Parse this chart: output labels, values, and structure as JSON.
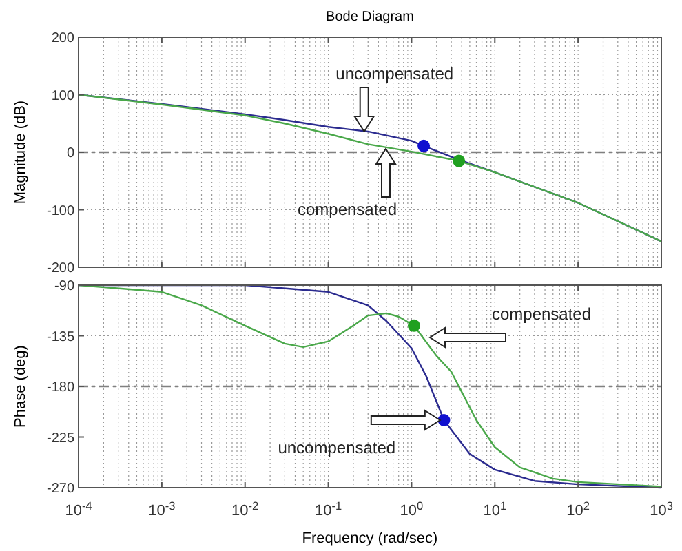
{
  "chart_data": [
    {
      "type": "line",
      "title": "Bode Diagram",
      "ylabel": "Magnitude (dB)",
      "log": "x",
      "grid": true,
      "tick_labels": "y",
      "xlim": [
        0.0001,
        1000
      ],
      "xticks": [
        0.0001,
        0.001,
        0.01,
        0.1,
        1,
        10,
        100,
        1000
      ],
      "ylim": [
        -200,
        200
      ],
      "yticks": [
        -200,
        -100,
        0,
        100,
        200
      ],
      "ref_lines": [
        {
          "axis": "y",
          "value": 0,
          "line_style": "dashdot",
          "color": "#808080"
        }
      ],
      "annotations": [
        {
          "text": "uncompensated",
          "x": 0.27,
          "y": 36
        },
        "compensated"
      ],
      "series": [
        {
          "color": "#2b2b8f",
          "x": [
            0.0001,
            0.001,
            0.01,
            0.03,
            0.1,
            0.3,
            1,
            1.4,
            3.7,
            10,
            100,
            1000
          ],
          "values": [
            100,
            84,
            66,
            56,
            44,
            36,
            20,
            11,
            -13,
            -35,
            -88,
            -155
          ]
        },
        {
          "color": "#4aa84a",
          "x": [
            0.0001,
            0.001,
            0.01,
            0.03,
            0.1,
            0.3,
            1,
            3.7,
            10,
            100,
            1000
          ],
          "values": [
            100,
            83,
            64,
            50,
            32,
            14,
            1,
            -15,
            -35,
            -88,
            -155
          ]
        },
        {
          "type": "scatter",
          "marker": "circle",
          "color": "#1010d0",
          "x": [
            1.4
          ],
          "values": [
            11
          ]
        },
        {
          "type": "scatter",
          "marker": "circle",
          "color": "#20a020",
          "x": [
            3.7
          ],
          "values": [
            -15
          ]
        }
      ]
    },
    {
      "type": "line",
      "xlabel": "Frequency  (rad/sec)",
      "ylabel": "Phase (deg)",
      "log": "x",
      "grid": true,
      "xlim": [
        0.0001,
        1000
      ],
      "xticks": [
        {
          "value": 0.0001,
          "label": "10$^{-4}$"
        },
        {
          "value": 0.001,
          "label": "10$^{-3}$"
        },
        {
          "value": 0.01,
          "label": "10$^{-2}$"
        },
        {
          "value": 0.1,
          "label": "10$^{-1}$"
        },
        {
          "value": 1,
          "label": "10$^{0}$"
        },
        {
          "value": 10,
          "label": "10$^{1}$"
        },
        {
          "value": 100,
          "label": "10$^{2}$"
        },
        {
          "value": 1000,
          "label": "10$^{3}$"
        }
      ],
      "ylim": [
        -270,
        -90
      ],
      "yticks": [
        -270,
        -225,
        -180,
        -135,
        -90
      ],
      "ref_lines": [
        {
          "axis": "y",
          "value": -180,
          "line_style": "dashdot",
          "color": "#808080"
        }
      ],
      "annotations": [
        "compensated",
        {
          "text": "uncompensated",
          "x": 2.2,
          "y": -210
        }
      ],
      "series": [
        {
          "color": "#2b2b8f",
          "x": [
            0.0001,
            0.01,
            0.1,
            0.3,
            0.5,
            1,
            1.5,
            2.45,
            5,
            10,
            30,
            100,
            1000
          ],
          "values": [
            -90,
            -90,
            -96,
            -108,
            -122,
            -146,
            -171,
            -210,
            -240,
            -254,
            -264,
            -267,
            -270
          ]
        },
        {
          "color": "#4aa84a",
          "x": [
            0.0001,
            0.001,
            0.003,
            0.01,
            0.03,
            0.05,
            0.1,
            0.2,
            0.3,
            0.5,
            0.7,
            1.07,
            2,
            3,
            3.7,
            6,
            10,
            20,
            50,
            100,
            1000
          ],
          "values": [
            -90,
            -96,
            -108,
            -126,
            -142,
            -145,
            -140,
            -126,
            -117,
            -115,
            -118,
            -126,
            -153,
            -167,
            -180,
            -210,
            -234,
            -252,
            -262,
            -265,
            -269
          ]
        },
        {
          "type": "scatter",
          "marker": "circle",
          "color": "#20a020",
          "x": [
            1.07
          ],
          "values": [
            -126
          ]
        },
        {
          "type": "scatter",
          "marker": "circle",
          "color": "#1010d0",
          "x": [
            2.45
          ],
          "values": [
            -210
          ]
        }
      ]
    }
  ]
}
